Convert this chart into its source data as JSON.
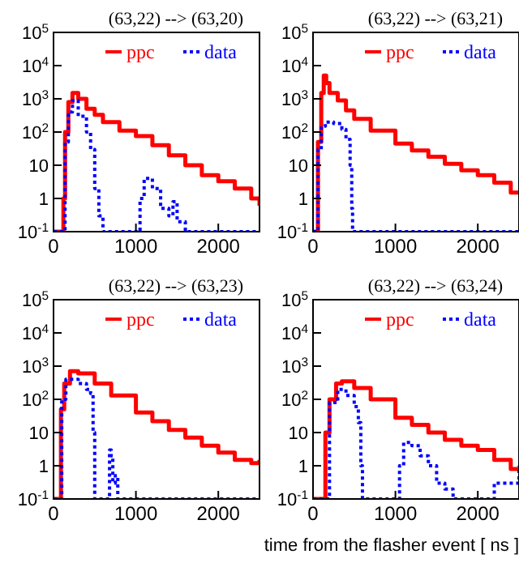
{
  "chart_data": [
    {
      "type": "step",
      "title": "(63,22) --> (63,20)",
      "log": "y",
      "xlim": [
        0,
        2500
      ],
      "xticks": [
        0,
        1000,
        2000
      ],
      "ylim": [
        0.1,
        100000
      ],
      "yticks": [
        {
          "value": 0.1,
          "label": "10$^{-1}$"
        },
        {
          "value": 1,
          "label": "1"
        },
        {
          "value": 10,
          "label": "10"
        },
        {
          "value": 100,
          "label": "10$^{2}$"
        },
        {
          "value": 1000,
          "label": "10$^{3}$"
        },
        {
          "value": 10000,
          "label": "10$^{4}$"
        },
        {
          "value": 100000,
          "label": "10$^{5}$"
        }
      ],
      "legend": "top right",
      "grid": false,
      "series": [
        {
          "name": "ppc",
          "color": "#ff0000",
          "line_style": "solid",
          "x": [
            0,
            100,
            120,
            140,
            180,
            230,
            300,
            400,
            500,
            600,
            800,
            1000,
            1200,
            1400,
            1600,
            1800,
            2000,
            2200,
            2400,
            2500
          ],
          "values": [
            0.1,
            0.1,
            1,
            100,
            800,
            1500,
            1000,
            500,
            330,
            200,
            110,
            75,
            40,
            20,
            10,
            5,
            3.3,
            2,
            1,
            0.6
          ]
        },
        {
          "name": "data",
          "color": "#0000ff",
          "line_style": "dotted",
          "x": [
            0,
            120,
            140,
            180,
            230,
            300,
            400,
            450,
            500,
            550,
            600,
            1000,
            1050,
            1100,
            1200,
            1300,
            1400,
            1450,
            1500,
            1600,
            2500
          ],
          "values": [
            0.1,
            0.1,
            50,
            400,
            900,
            300,
            100,
            30,
            2,
            0.3,
            0.1,
            0.1,
            1,
            4,
            2,
            0.5,
            0.3,
            0.8,
            0.2,
            0.1,
            0.1
          ]
        }
      ]
    },
    {
      "type": "step",
      "title": "(63,22) --> (63,21)",
      "log": "y",
      "xlim": [
        0,
        2500
      ],
      "xticks": [
        0,
        1000,
        2000
      ],
      "ylim": [
        0.1,
        100000
      ],
      "yticks": [
        {
          "value": 0.1,
          "label": "10$^{-1}$"
        },
        {
          "value": 1,
          "label": "1"
        },
        {
          "value": 10,
          "label": "10"
        },
        {
          "value": 100,
          "label": "10$^{2}$"
        },
        {
          "value": 1000,
          "label": "10$^{3}$"
        },
        {
          "value": 10000,
          "label": "10$^{4}$"
        },
        {
          "value": 100000,
          "label": "10$^{5}$"
        }
      ],
      "legend": "top right",
      "grid": false,
      "series": [
        {
          "name": "ppc",
          "color": "#ff0000",
          "line_style": "solid",
          "x": [
            0,
            40,
            60,
            100,
            130,
            160,
            200,
            300,
            400,
            500,
            700,
            1000,
            1200,
            1400,
            1600,
            1800,
            2000,
            2200,
            2400,
            2500
          ],
          "values": [
            0.1,
            0.1,
            50,
            1500,
            5000,
            3000,
            1500,
            900,
            450,
            250,
            110,
            45,
            28,
            18,
            11,
            7,
            5,
            3,
            1.5,
            1.5
          ]
        },
        {
          "name": "data",
          "color": "#0000ff",
          "line_style": "dotted",
          "x": [
            0,
            40,
            60,
            100,
            150,
            250,
            350,
            400,
            450,
            470,
            480,
            2500
          ],
          "values": [
            0.1,
            0.1,
            30,
            150,
            200,
            180,
            120,
            60,
            10,
            0.5,
            0.1,
            0.1
          ]
        }
      ]
    },
    {
      "type": "step",
      "title": "(63,22) --> (63,23)",
      "log": "y",
      "xlim": [
        0,
        2500
      ],
      "xticks": [
        0,
        1000,
        2000
      ],
      "ylim": [
        0.1,
        100000
      ],
      "yticks": [
        {
          "value": 0.1,
          "label": "10$^{-1}$"
        },
        {
          "value": 1,
          "label": "1"
        },
        {
          "value": 10,
          "label": "10"
        },
        {
          "value": 100,
          "label": "10$^{2}$"
        },
        {
          "value": 1000,
          "label": "10$^{3}$"
        },
        {
          "value": 10000,
          "label": "10$^{4}$"
        },
        {
          "value": 100000,
          "label": "10$^{5}$"
        }
      ],
      "legend": "top right",
      "grid": false,
      "series": [
        {
          "name": "ppc",
          "color": "#ff0000",
          "line_style": "solid",
          "x": [
            0,
            70,
            90,
            130,
            200,
            300,
            500,
            700,
            1000,
            1200,
            1400,
            1600,
            1800,
            2000,
            2200,
            2400,
            2500
          ],
          "values": [
            0.1,
            0.1,
            50,
            300,
            700,
            600,
            300,
            130,
            40,
            22,
            12,
            7,
            4,
            2.5,
            1.5,
            1.2,
            1.5
          ]
        },
        {
          "name": "data",
          "color": "#0000ff",
          "line_style": "dotted",
          "x": [
            0,
            70,
            100,
            150,
            200,
            300,
            400,
            450,
            480,
            500,
            650,
            680,
            700,
            720,
            750,
            780,
            2500
          ],
          "values": [
            0.1,
            0.1,
            100,
            400,
            400,
            300,
            200,
            150,
            10,
            0.1,
            0.1,
            3,
            2,
            0.3,
            0.5,
            0.1,
            0.1
          ]
        }
      ]
    },
    {
      "type": "step",
      "title": "(63,22) --> (63,24)",
      "xlabel": "time from the flasher event [ ns ]",
      "log": "y",
      "xlim": [
        0,
        2500
      ],
      "xticks": [
        0,
        1000,
        2000
      ],
      "ylim": [
        0.1,
        100000
      ],
      "yticks": [
        {
          "value": 0.1,
          "label": "10$^{-1}$"
        },
        {
          "value": 1,
          "label": "1"
        },
        {
          "value": 10,
          "label": "10"
        },
        {
          "value": 100,
          "label": "10$^{2}$"
        },
        {
          "value": 1000,
          "label": "10$^{3}$"
        },
        {
          "value": 10000,
          "label": "10$^{4}$"
        },
        {
          "value": 100000,
          "label": "10$^{5}$"
        }
      ],
      "legend": "top right",
      "grid": false,
      "series": [
        {
          "name": "ppc",
          "color": "#ff0000",
          "line_style": "solid",
          "x": [
            0,
            130,
            150,
            200,
            280,
            350,
            500,
            700,
            1000,
            1200,
            1400,
            1600,
            1800,
            2000,
            2200,
            2400,
            2500
          ],
          "values": [
            0.1,
            0.1,
            10,
            100,
            300,
            350,
            220,
            100,
            28,
            17,
            10,
            6,
            4,
            3,
            1.5,
            0.8,
            0.8
          ]
        },
        {
          "name": "data",
          "color": "#0000ff",
          "line_style": "dotted",
          "x": [
            0,
            150,
            200,
            300,
            400,
            500,
            550,
            580,
            600,
            1000,
            1050,
            1100,
            1200,
            1300,
            1400,
            1500,
            1600,
            1700,
            2000,
            2200,
            2400,
            2500
          ],
          "values": [
            0.1,
            0.1,
            80,
            200,
            130,
            60,
            20,
            1,
            0.1,
            0.1,
            1,
            5,
            4,
            2,
            1,
            0.3,
            0.2,
            0.1,
            0.1,
            0.3,
            0.3,
            1
          ]
        }
      ]
    }
  ]
}
